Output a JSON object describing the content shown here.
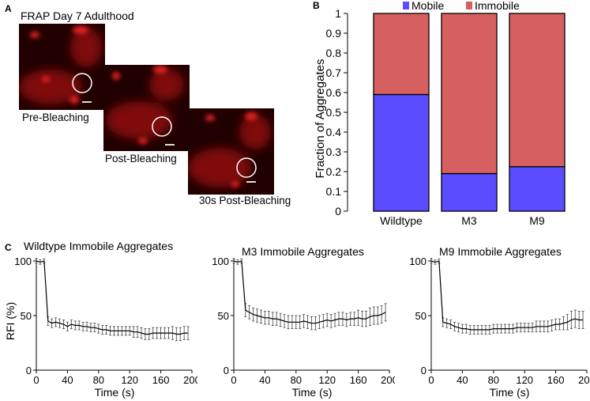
{
  "panel_a": {
    "letter": "A",
    "title": "FRAP Day 7 Adulthood",
    "captions": [
      "Pre-Bleaching",
      "Post-Bleaching",
      "30s Post-Bleaching"
    ]
  },
  "panel_b": {
    "letter": "B"
  },
  "panel_c": {
    "letter": "C"
  },
  "colors": {
    "mobile": "#5b4dff",
    "immobile": "#d65f5f",
    "line": "#000000"
  },
  "chart_data": [
    {
      "type": "bar",
      "stacked": true,
      "categories": [
        "Wildtype",
        "M3",
        "M9"
      ],
      "series": [
        {
          "name": "Mobile",
          "values": [
            0.59,
            0.19,
            0.225
          ]
        },
        {
          "name": "Immobile",
          "values": [
            0.41,
            0.81,
            0.775
          ]
        }
      ],
      "ylabel": "Fraction of Aggregates",
      "ylim": [
        0,
        1
      ],
      "yticks": [
        "0",
        "0.1",
        "0.2",
        "0.3",
        "0.4",
        "0.5",
        "0.6",
        "0.7",
        "0.8",
        "0.9",
        "1"
      ],
      "legend": [
        "Mobile",
        "Immobile"
      ]
    },
    {
      "type": "line",
      "title": "Wildtype Immobile Aggregates",
      "xlabel": "Time (s)",
      "ylabel": "RFI (%)",
      "xlim": [
        0,
        200
      ],
      "ylim": [
        0,
        100
      ],
      "xticks": [
        "0",
        "40",
        "80",
        "120",
        "160",
        "200"
      ],
      "yticks": [
        "0",
        "50",
        "100"
      ],
      "x": [
        0,
        5,
        10,
        15,
        20,
        25,
        30,
        35,
        40,
        45,
        50,
        55,
        60,
        65,
        70,
        75,
        80,
        85,
        90,
        95,
        100,
        105,
        110,
        115,
        120,
        125,
        130,
        135,
        140,
        145,
        150,
        155,
        160,
        165,
        170,
        175,
        180,
        185,
        190,
        195
      ],
      "y": [
        100,
        99,
        100,
        45,
        43,
        44,
        43,
        42,
        40,
        42,
        41,
        41,
        40,
        40,
        39,
        39,
        38,
        37,
        37,
        36,
        36,
        36,
        36,
        36,
        36,
        35,
        35,
        34,
        33,
        33,
        34,
        34,
        34,
        34,
        34,
        34,
        33,
        33,
        34,
        34
      ],
      "err": [
        2,
        2,
        2,
        4,
        4,
        4,
        4,
        4,
        4,
        4,
        4,
        4,
        4,
        4,
        4,
        4,
        4,
        4,
        4,
        4,
        4,
        4,
        4,
        4,
        4,
        5,
        5,
        5,
        5,
        5,
        5,
        5,
        5,
        5,
        5,
        6,
        6,
        6,
        6,
        6
      ]
    },
    {
      "type": "line",
      "title": "M3 Immobile Aggregates",
      "xlabel": "Time (s)",
      "ylabel": "",
      "xlim": [
        0,
        200
      ],
      "ylim": [
        0,
        100
      ],
      "xticks": [
        "0",
        "40",
        "80",
        "120",
        "160",
        "200"
      ],
      "yticks": [
        "0",
        "50",
        "100"
      ],
      "x": [
        0,
        5,
        10,
        15,
        20,
        25,
        30,
        35,
        40,
        45,
        50,
        55,
        60,
        65,
        70,
        75,
        80,
        85,
        90,
        95,
        100,
        105,
        110,
        115,
        120,
        125,
        130,
        135,
        140,
        145,
        150,
        155,
        160,
        165,
        170,
        175,
        180,
        185,
        190,
        195
      ],
      "y": [
        100,
        99,
        100,
        55,
        53,
        51,
        50,
        49,
        48,
        48,
        47,
        47,
        46,
        45,
        44,
        44,
        44,
        44,
        45,
        44,
        43,
        43,
        44,
        45,
        46,
        45,
        46,
        47,
        47,
        46,
        47,
        47,
        48,
        47,
        47,
        49,
        50,
        50,
        51,
        53
      ],
      "err": [
        2,
        2,
        2,
        6,
        6,
        6,
        6,
        6,
        6,
        6,
        6,
        6,
        6,
        6,
        6,
        6,
        6,
        6,
        6,
        6,
        6,
        6,
        6,
        6,
        6,
        6,
        6,
        6,
        6,
        6,
        6,
        6,
        7,
        7,
        7,
        8,
        8,
        8,
        8,
        8
      ]
    },
    {
      "type": "line",
      "title": "M9 Immobile Aggregates",
      "xlabel": "Time (s)",
      "ylabel": "",
      "xlim": [
        0,
        200
      ],
      "ylim": [
        0,
        100
      ],
      "xticks": [
        "0",
        "40",
        "80",
        "120",
        "160",
        "200"
      ],
      "yticks": [
        "0",
        "50",
        "100"
      ],
      "x": [
        0,
        5,
        10,
        15,
        20,
        25,
        30,
        35,
        40,
        45,
        50,
        55,
        60,
        65,
        70,
        75,
        80,
        85,
        90,
        95,
        100,
        105,
        110,
        115,
        120,
        125,
        130,
        135,
        140,
        145,
        150,
        155,
        160,
        165,
        170,
        175,
        180,
        185,
        190,
        195
      ],
      "y": [
        100,
        99,
        100,
        44,
        43,
        42,
        40,
        39,
        38,
        38,
        37,
        37,
        37,
        37,
        37,
        37,
        38,
        38,
        38,
        38,
        38,
        38,
        39,
        39,
        39,
        39,
        39,
        40,
        40,
        40,
        40,
        41,
        42,
        42,
        43,
        44,
        46,
        47,
        46,
        46
      ],
      "err": [
        2,
        2,
        2,
        4,
        4,
        4,
        4,
        4,
        4,
        4,
        4,
        4,
        4,
        4,
        4,
        4,
        4,
        4,
        4,
        4,
        4,
        4,
        4,
        4,
        4,
        4,
        4,
        5,
        5,
        5,
        5,
        5,
        5,
        5,
        6,
        7,
        8,
        8,
        8,
        8
      ]
    }
  ]
}
